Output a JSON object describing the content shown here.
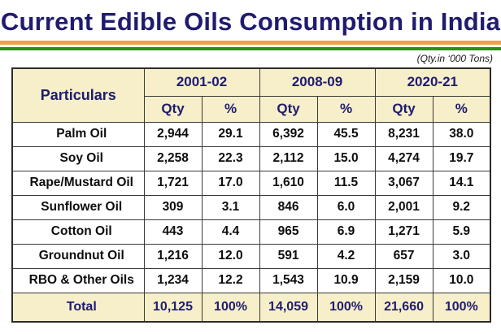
{
  "title": "Current Edible Oils Consumption in India",
  "units_note": "(Qty.in ‘000 Tons)",
  "colors": {
    "title_navy": "#1f1c70",
    "saffron_bar": "#f0a243",
    "green_bar": "#2f8c1f",
    "header_bg": "#f6efc9",
    "body_bg": "#ffffff",
    "border": "#3a3a3a",
    "body_text": "#0d0d0d"
  },
  "table": {
    "particulars_header": "Particulars",
    "year_groups": [
      "2001-02",
      "2008-09",
      "2020-21"
    ],
    "sub_headers": [
      "Qty",
      "%"
    ],
    "rows": [
      {
        "name": "Palm Oil",
        "values": [
          "2,944",
          "29.1",
          "6,392",
          "45.5",
          "8,231",
          "38.0"
        ]
      },
      {
        "name": "Soy Oil",
        "values": [
          "2,258",
          "22.3",
          "2,112",
          "15.0",
          "4,274",
          "19.7"
        ]
      },
      {
        "name": "Rape/Mustard Oil",
        "values": [
          "1,721",
          "17.0",
          "1,610",
          "11.5",
          "3,067",
          "14.1"
        ]
      },
      {
        "name": "Sunflower Oil",
        "values": [
          "309",
          "3.1",
          "846",
          "6.0",
          "2,001",
          "9.2"
        ]
      },
      {
        "name": "Cotton Oil",
        "values": [
          "443",
          "4.4",
          "965",
          "6.9",
          "1,271",
          "5.9"
        ]
      },
      {
        "name": "Groundnut Oil",
        "values": [
          "1,216",
          "12.0",
          "591",
          "4.2",
          "657",
          "3.0"
        ]
      },
      {
        "name": "RBO & Other Oils",
        "values": [
          "1,234",
          "12.2",
          "1,543",
          "10.9",
          "2,159",
          "10.0"
        ]
      }
    ],
    "total_row": {
      "name": "Total",
      "values": [
        "10,125",
        "100%",
        "14,059",
        "100%",
        "21,660",
        "100%"
      ]
    }
  },
  "chart_data": {
    "type": "table",
    "title": "Current Edible Oils Consumption in India",
    "units": "'000 Tons",
    "columns": [
      "Particulars",
      "2001-02 Qty",
      "2001-02 %",
      "2008-09 Qty",
      "2008-09 %",
      "2020-21 Qty",
      "2020-21 %"
    ],
    "rows": [
      [
        "Palm Oil",
        2944,
        29.1,
        6392,
        45.5,
        8231,
        38.0
      ],
      [
        "Soy Oil",
        2258,
        22.3,
        2112,
        15.0,
        4274,
        19.7
      ],
      [
        "Rape/Mustard Oil",
        1721,
        17.0,
        1610,
        11.5,
        3067,
        14.1
      ],
      [
        "Sunflower Oil",
        309,
        3.1,
        846,
        6.0,
        2001,
        9.2
      ],
      [
        "Cotton Oil",
        443,
        4.4,
        965,
        6.9,
        1271,
        5.9
      ],
      [
        "Groundnut Oil",
        1216,
        12.0,
        591,
        4.2,
        657,
        3.0
      ],
      [
        "RBO & Other Oils",
        1234,
        12.2,
        1543,
        10.9,
        2159,
        10.0
      ],
      [
        "Total",
        10125,
        100,
        14059,
        100,
        21660,
        100
      ]
    ]
  }
}
